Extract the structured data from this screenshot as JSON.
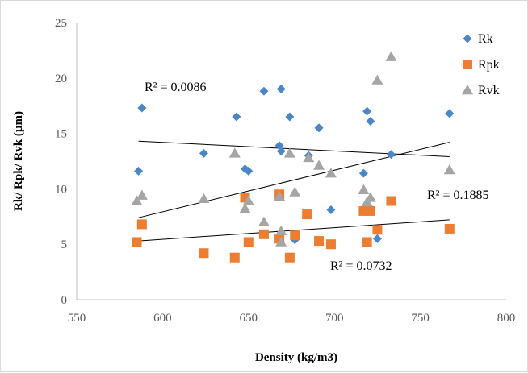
{
  "chart_data": {
    "type": "scatter",
    "xlabel": "Density (kg/m3)",
    "ylabel": "Rk/ Rpk/ Rvk (µm)",
    "xlim": [
      550,
      800
    ],
    "ylim": [
      0,
      25
    ],
    "xticks": [
      550,
      600,
      650,
      700,
      750,
      800
    ],
    "yticks": [
      0,
      5,
      10,
      15,
      20,
      25
    ],
    "grid": false,
    "legend_position": "top-right",
    "series": [
      {
        "name": "Rk",
        "marker": "diamond",
        "color": "#4a86c8",
        "points": [
          [
            586,
            11.6
          ],
          [
            588,
            17.3
          ],
          [
            624,
            13.2
          ],
          [
            643,
            16.5
          ],
          [
            648,
            11.8
          ],
          [
            650,
            11.6
          ],
          [
            659,
            18.8
          ],
          [
            668,
            13.9
          ],
          [
            669,
            19.0
          ],
          [
            669,
            13.4
          ],
          [
            674,
            16.5
          ],
          [
            677,
            5.4
          ],
          [
            685,
            13.0
          ],
          [
            691,
            15.5
          ],
          [
            698,
            8.1
          ],
          [
            717,
            11.4
          ],
          [
            719,
            17.0
          ],
          [
            721,
            16.1
          ],
          [
            725,
            5.5
          ],
          [
            733,
            13.1
          ],
          [
            767,
            16.8
          ]
        ],
        "trendline": {
          "label": "R² = 0.0086",
          "from": [
            586,
            14.3
          ],
          "to": [
            767,
            12.9
          ]
        }
      },
      {
        "name": "Rpk",
        "marker": "square",
        "color": "#ed7d31",
        "points": [
          [
            585,
            5.2
          ],
          [
            588,
            6.8
          ],
          [
            624,
            4.2
          ],
          [
            642,
            3.8
          ],
          [
            648,
            9.2
          ],
          [
            650,
            5.2
          ],
          [
            659,
            5.9
          ],
          [
            668,
            5.5
          ],
          [
            668,
            9.5
          ],
          [
            674,
            3.8
          ],
          [
            677,
            5.8
          ],
          [
            684,
            7.7
          ],
          [
            691,
            5.3
          ],
          [
            698,
            5.0
          ],
          [
            717,
            8.0
          ],
          [
            719,
            5.2
          ],
          [
            721,
            8.0
          ],
          [
            725,
            6.3
          ],
          [
            733,
            8.9
          ],
          [
            767,
            6.4
          ]
        ],
        "trendline": {
          "label": "R² = 0.0732",
          "from": [
            586,
            5.3
          ],
          "to": [
            767,
            7.2
          ]
        }
      },
      {
        "name": "Rvk",
        "marker": "triangle",
        "color": "#a5a5a5",
        "points": [
          [
            585,
            8.9
          ],
          [
            588,
            9.4
          ],
          [
            624,
            9.1
          ],
          [
            642,
            13.2
          ],
          [
            648,
            8.2
          ],
          [
            650,
            8.9
          ],
          [
            659,
            7.0
          ],
          [
            668,
            9.3
          ],
          [
            669,
            6.2
          ],
          [
            669,
            5.2
          ],
          [
            674,
            13.2
          ],
          [
            677,
            9.7
          ],
          [
            685,
            12.8
          ],
          [
            691,
            12.1
          ],
          [
            698,
            11.4
          ],
          [
            717,
            9.9
          ],
          [
            719,
            8.8
          ],
          [
            721,
            9.2
          ],
          [
            725,
            19.8
          ],
          [
            733,
            21.9
          ],
          [
            767,
            11.7
          ]
        ],
        "trendline": {
          "label": "R² = 0.1885",
          "from": [
            586,
            7.4
          ],
          "to": [
            767,
            14.2
          ]
        }
      }
    ]
  }
}
